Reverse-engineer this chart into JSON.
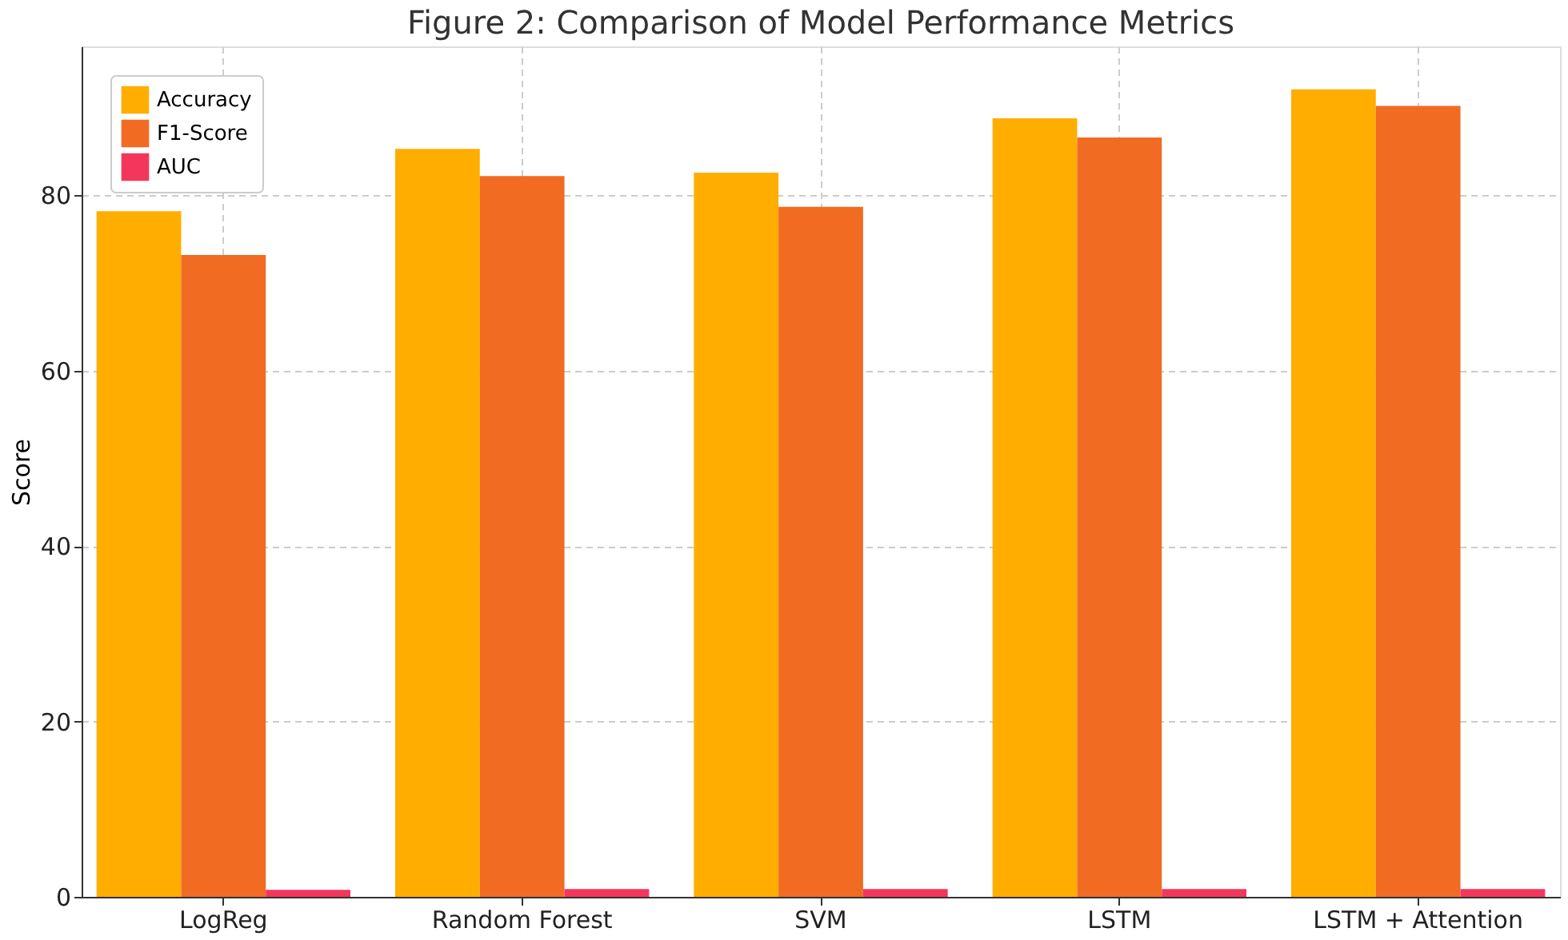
{
  "chart_data": {
    "type": "bar",
    "title": "Figure 2: Comparison of Model Performance Metrics",
    "ylabel": "Score",
    "categories": [
      "LogReg",
      "Random Forest",
      "SVM",
      "LSTM",
      "LSTM + Attention"
    ],
    "series": [
      {
        "name": "Accuracy",
        "color": "#ffae00",
        "values": [
          78.2,
          85.3,
          82.6,
          88.8,
          92.1
        ]
      },
      {
        "name": "F1-Score",
        "color": "#f26b22",
        "values": [
          73.2,
          82.2,
          78.7,
          86.6,
          90.2
        ]
      },
      {
        "name": "AUC",
        "color": "#f4365c",
        "values": [
          0.8,
          0.9,
          0.9,
          0.9,
          0.9
        ]
      }
    ],
    "ylim": [
      0,
      97
    ],
    "yticks": [
      0,
      20,
      40,
      60,
      80
    ],
    "grid": true,
    "legend": "top left"
  }
}
